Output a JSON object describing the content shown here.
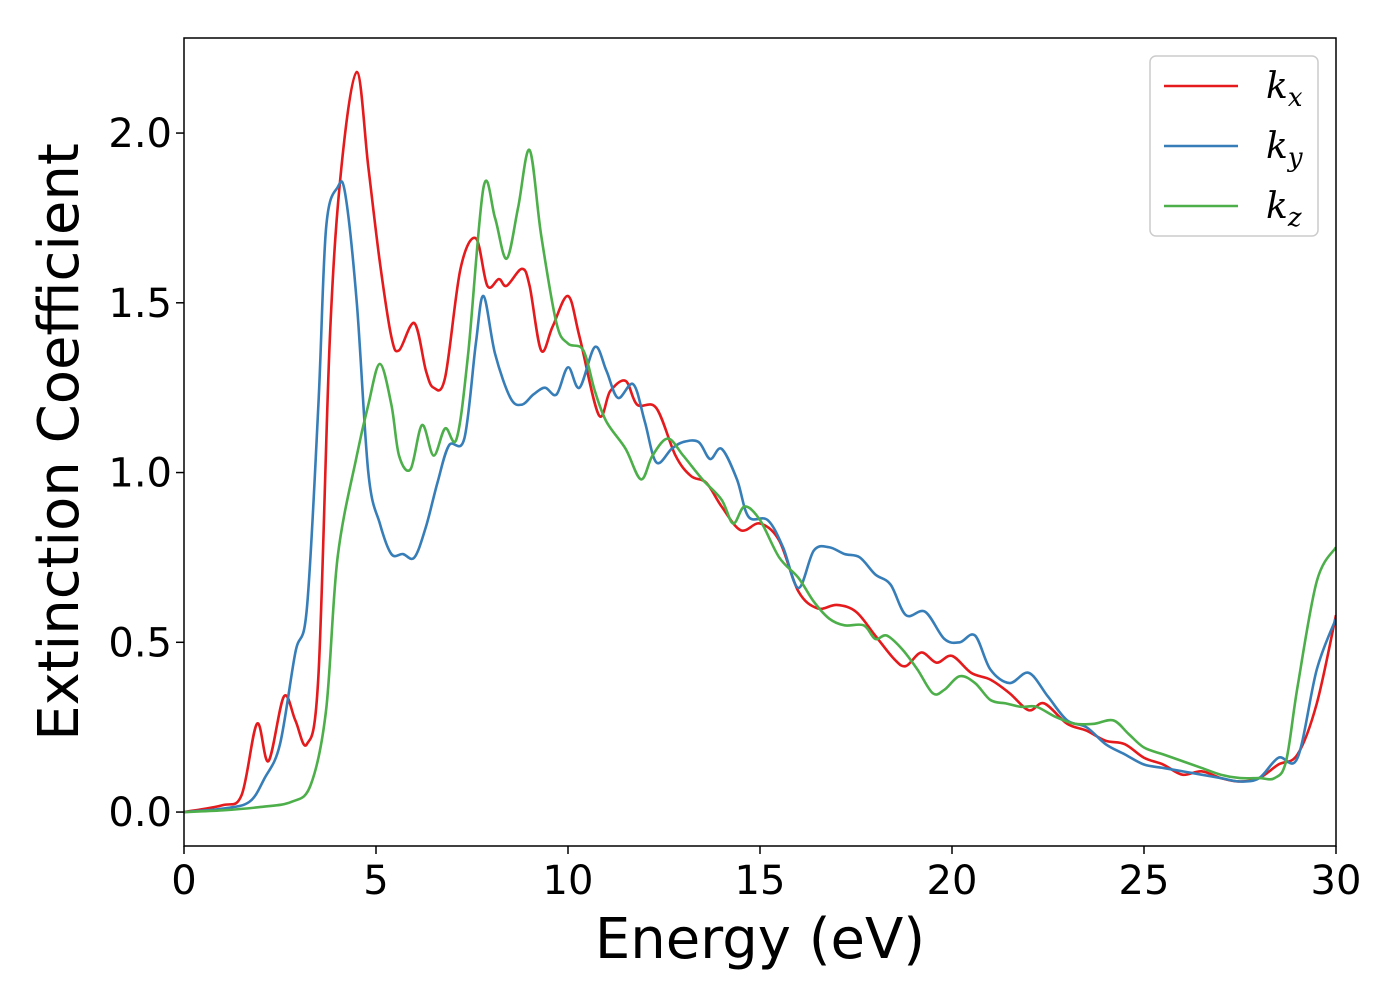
{
  "chart_data": {
    "type": "line",
    "xlabel": "Energy (eV)",
    "ylabel": "Extinction Coefficient",
    "xlim": [
      0,
      30
    ],
    "ylim": [
      -0.1,
      2.28
    ],
    "xticks": [
      0,
      5,
      10,
      15,
      20,
      25,
      30
    ],
    "xtick_labels": [
      "0",
      "5",
      "10",
      "15",
      "20",
      "25",
      "30"
    ],
    "yticks": [
      0.0,
      0.5,
      1.0,
      1.5,
      2.0
    ],
    "ytick_labels": [
      "0.0",
      "0.5",
      "1.0",
      "1.5",
      "2.0"
    ],
    "grid": false,
    "legend_position": "top-right",
    "series": [
      {
        "name": "k",
        "subscript": "x",
        "color": "#e41a1c",
        "points": [
          [
            0,
            0
          ],
          [
            1,
            0.02
          ],
          [
            1.5,
            0.05
          ],
          [
            1.9,
            0.26
          ],
          [
            2.2,
            0.15
          ],
          [
            2.6,
            0.34
          ],
          [
            2.9,
            0.27
          ],
          [
            3.2,
            0.2
          ],
          [
            3.5,
            0.4
          ],
          [
            3.8,
            1.4
          ],
          [
            4.1,
            1.9
          ],
          [
            4.5,
            2.18
          ],
          [
            4.8,
            1.9
          ],
          [
            5.1,
            1.62
          ],
          [
            5.4,
            1.4
          ],
          [
            5.6,
            1.36
          ],
          [
            6.0,
            1.44
          ],
          [
            6.3,
            1.3
          ],
          [
            6.5,
            1.25
          ],
          [
            6.8,
            1.28
          ],
          [
            7.2,
            1.6
          ],
          [
            7.6,
            1.69
          ],
          [
            7.9,
            1.55
          ],
          [
            8.2,
            1.57
          ],
          [
            8.4,
            1.55
          ],
          [
            8.8,
            1.6
          ],
          [
            9.0,
            1.55
          ],
          [
            9.3,
            1.36
          ],
          [
            9.6,
            1.43
          ],
          [
            10.0,
            1.52
          ],
          [
            10.3,
            1.4
          ],
          [
            10.8,
            1.17
          ],
          [
            11.1,
            1.24
          ],
          [
            11.5,
            1.27
          ],
          [
            11.8,
            1.2
          ],
          [
            12.3,
            1.19
          ],
          [
            12.8,
            1.05
          ],
          [
            13.2,
            0.99
          ],
          [
            13.6,
            0.97
          ],
          [
            14.0,
            0.9
          ],
          [
            14.5,
            0.83
          ],
          [
            15.0,
            0.85
          ],
          [
            15.5,
            0.8
          ],
          [
            16.0,
            0.65
          ],
          [
            16.5,
            0.6
          ],
          [
            17.0,
            0.61
          ],
          [
            17.5,
            0.59
          ],
          [
            18.0,
            0.52
          ],
          [
            18.5,
            0.45
          ],
          [
            18.8,
            0.43
          ],
          [
            19.2,
            0.47
          ],
          [
            19.6,
            0.44
          ],
          [
            20.0,
            0.46
          ],
          [
            20.5,
            0.41
          ],
          [
            21.0,
            0.39
          ],
          [
            21.5,
            0.35
          ],
          [
            22.0,
            0.3
          ],
          [
            22.4,
            0.32
          ],
          [
            23.0,
            0.26
          ],
          [
            23.5,
            0.24
          ],
          [
            24.0,
            0.21
          ],
          [
            24.5,
            0.2
          ],
          [
            25.0,
            0.16
          ],
          [
            25.5,
            0.14
          ],
          [
            26.0,
            0.11
          ],
          [
            26.5,
            0.12
          ],
          [
            27.0,
            0.1
          ],
          [
            27.5,
            0.09
          ],
          [
            28.0,
            0.1
          ],
          [
            28.5,
            0.14
          ],
          [
            29.0,
            0.17
          ],
          [
            29.5,
            0.32
          ],
          [
            30.0,
            0.58
          ]
        ]
      },
      {
        "name": "k",
        "subscript": "y",
        "color": "#377eb8",
        "points": [
          [
            0,
            0
          ],
          [
            1,
            0.01
          ],
          [
            1.7,
            0.03
          ],
          [
            2.1,
            0.1
          ],
          [
            2.5,
            0.2
          ],
          [
            2.9,
            0.47
          ],
          [
            3.2,
            0.6
          ],
          [
            3.5,
            1.2
          ],
          [
            3.7,
            1.72
          ],
          [
            4.0,
            1.84
          ],
          [
            4.2,
            1.82
          ],
          [
            4.5,
            1.5
          ],
          [
            4.8,
            1.0
          ],
          [
            5.1,
            0.85
          ],
          [
            5.4,
            0.76
          ],
          [
            5.7,
            0.76
          ],
          [
            6.0,
            0.75
          ],
          [
            6.3,
            0.84
          ],
          [
            6.6,
            0.97
          ],
          [
            6.9,
            1.08
          ],
          [
            7.3,
            1.1
          ],
          [
            7.6,
            1.38
          ],
          [
            7.8,
            1.52
          ],
          [
            8.1,
            1.35
          ],
          [
            8.5,
            1.22
          ],
          [
            8.8,
            1.2
          ],
          [
            9.1,
            1.23
          ],
          [
            9.4,
            1.25
          ],
          [
            9.7,
            1.23
          ],
          [
            10.0,
            1.31
          ],
          [
            10.3,
            1.25
          ],
          [
            10.7,
            1.37
          ],
          [
            11.0,
            1.3
          ],
          [
            11.3,
            1.22
          ],
          [
            11.7,
            1.26
          ],
          [
            12.0,
            1.15
          ],
          [
            12.3,
            1.03
          ],
          [
            12.7,
            1.07
          ],
          [
            13.0,
            1.09
          ],
          [
            13.4,
            1.09
          ],
          [
            13.7,
            1.04
          ],
          [
            14.0,
            1.07
          ],
          [
            14.4,
            0.98
          ],
          [
            14.7,
            0.87
          ],
          [
            15.2,
            0.86
          ],
          [
            15.6,
            0.78
          ],
          [
            16.0,
            0.66
          ],
          [
            16.4,
            0.77
          ],
          [
            16.8,
            0.78
          ],
          [
            17.2,
            0.76
          ],
          [
            17.6,
            0.75
          ],
          [
            18.0,
            0.7
          ],
          [
            18.4,
            0.67
          ],
          [
            18.8,
            0.58
          ],
          [
            19.3,
            0.59
          ],
          [
            19.8,
            0.51
          ],
          [
            20.2,
            0.5
          ],
          [
            20.6,
            0.52
          ],
          [
            21.0,
            0.42
          ],
          [
            21.5,
            0.38
          ],
          [
            22.0,
            0.41
          ],
          [
            22.5,
            0.34
          ],
          [
            23.0,
            0.27
          ],
          [
            23.5,
            0.25
          ],
          [
            24.0,
            0.2
          ],
          [
            24.5,
            0.17
          ],
          [
            25.0,
            0.14
          ],
          [
            25.5,
            0.13
          ],
          [
            26.0,
            0.12
          ],
          [
            26.5,
            0.11
          ],
          [
            27.0,
            0.1
          ],
          [
            27.5,
            0.09
          ],
          [
            28.0,
            0.1
          ],
          [
            28.5,
            0.16
          ],
          [
            29.0,
            0.16
          ],
          [
            29.5,
            0.42
          ],
          [
            30.0,
            0.57
          ]
        ]
      },
      {
        "name": "k",
        "subscript": "z",
        "color": "#4daf4a",
        "points": [
          [
            0,
            0
          ],
          [
            1,
            0.005
          ],
          [
            2,
            0.015
          ],
          [
            2.8,
            0.03
          ],
          [
            3.3,
            0.08
          ],
          [
            3.7,
            0.3
          ],
          [
            4.0,
            0.75
          ],
          [
            4.5,
            1.05
          ],
          [
            4.8,
            1.2
          ],
          [
            5.1,
            1.32
          ],
          [
            5.4,
            1.2
          ],
          [
            5.6,
            1.05
          ],
          [
            5.9,
            1.01
          ],
          [
            6.2,
            1.14
          ],
          [
            6.5,
            1.05
          ],
          [
            6.8,
            1.13
          ],
          [
            7.1,
            1.1
          ],
          [
            7.4,
            1.35
          ],
          [
            7.8,
            1.84
          ],
          [
            8.1,
            1.75
          ],
          [
            8.4,
            1.63
          ],
          [
            8.7,
            1.78
          ],
          [
            9.0,
            1.95
          ],
          [
            9.3,
            1.7
          ],
          [
            9.7,
            1.44
          ],
          [
            10.0,
            1.38
          ],
          [
            10.4,
            1.36
          ],
          [
            10.7,
            1.24
          ],
          [
            11.0,
            1.15
          ],
          [
            11.5,
            1.07
          ],
          [
            11.9,
            0.98
          ],
          [
            12.2,
            1.05
          ],
          [
            12.6,
            1.1
          ],
          [
            13.0,
            1.05
          ],
          [
            13.5,
            0.98
          ],
          [
            14.0,
            0.92
          ],
          [
            14.3,
            0.85
          ],
          [
            14.6,
            0.9
          ],
          [
            15.0,
            0.86
          ],
          [
            15.5,
            0.75
          ],
          [
            16.0,
            0.69
          ],
          [
            16.4,
            0.62
          ],
          [
            16.8,
            0.57
          ],
          [
            17.2,
            0.55
          ],
          [
            17.7,
            0.55
          ],
          [
            18.0,
            0.51
          ],
          [
            18.3,
            0.52
          ],
          [
            18.7,
            0.48
          ],
          [
            19.1,
            0.42
          ],
          [
            19.5,
            0.35
          ],
          [
            19.8,
            0.36
          ],
          [
            20.2,
            0.4
          ],
          [
            20.6,
            0.38
          ],
          [
            21.0,
            0.33
          ],
          [
            21.4,
            0.32
          ],
          [
            21.8,
            0.31
          ],
          [
            22.2,
            0.31
          ],
          [
            22.7,
            0.28
          ],
          [
            23.2,
            0.26
          ],
          [
            23.7,
            0.26
          ],
          [
            24.2,
            0.27
          ],
          [
            24.6,
            0.23
          ],
          [
            25.0,
            0.19
          ],
          [
            25.5,
            0.17
          ],
          [
            26.0,
            0.15
          ],
          [
            26.5,
            0.13
          ],
          [
            27.0,
            0.11
          ],
          [
            27.5,
            0.1
          ],
          [
            28.0,
            0.1
          ],
          [
            28.4,
            0.1
          ],
          [
            28.7,
            0.15
          ],
          [
            29.0,
            0.37
          ],
          [
            29.5,
            0.68
          ],
          [
            30.0,
            0.78
          ]
        ]
      }
    ]
  }
}
